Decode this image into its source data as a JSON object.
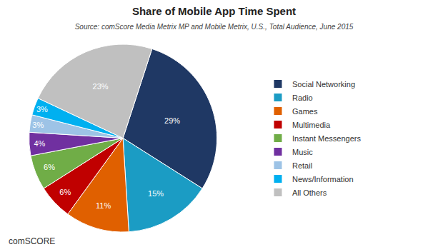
{
  "chart_data": {
    "type": "pie",
    "title": "Share of Mobile App Time Spent",
    "subtitle": "Source: comScore Media Metrix MP and Mobile Metrix, U.S., Total Audience, June 2015",
    "categories": [
      "Social Networking",
      "Radio",
      "Games",
      "Multimedia",
      "Instant Messengers",
      "Music",
      "Retail",
      "News/Information",
      "All Others"
    ],
    "values": [
      29,
      15,
      11,
      6,
      6,
      4,
      3,
      3,
      23
    ],
    "value_labels": [
      "29%",
      "15%",
      "11%",
      "6%",
      "6%",
      "4%",
      "3%",
      "3%",
      "23%"
    ],
    "colors": [
      "#1F3864",
      "#1B9CC4",
      "#E06000",
      "#C00000",
      "#70AD47",
      "#7030A0",
      "#9DC3E6",
      "#00B0F0",
      "#C0C0C0"
    ],
    "data_labels": true,
    "legend": "right",
    "annotations": [
      "comSCORE"
    ]
  }
}
